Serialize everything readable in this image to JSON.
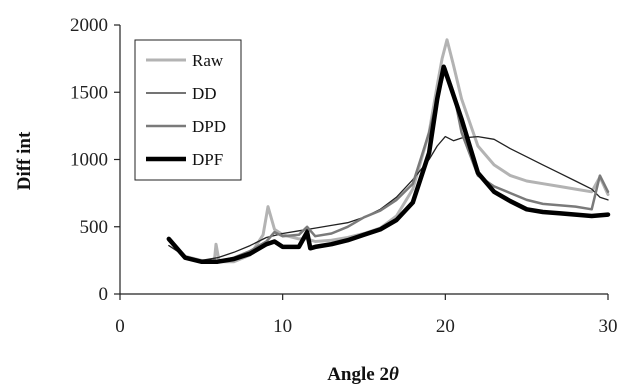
{
  "chart_data": {
    "type": "line",
    "xlabel": "Angle 2",
    "xlabel_symbol": "θ",
    "ylabel": "Diff int",
    "xlim": [
      0,
      30
    ],
    "ylim": [
      0,
      2000
    ],
    "x_ticks": [
      "0",
      "10",
      "20",
      "30"
    ],
    "y_ticks": [
      "0",
      "500",
      "1000",
      "1500",
      "2000"
    ],
    "grid": false,
    "legend_position": "top-left",
    "series": [
      {
        "name": "Raw",
        "color": "#b3b3b3",
        "width": 3,
        "points": [
          [
            3,
            400
          ],
          [
            4,
            280
          ],
          [
            5,
            250
          ],
          [
            5.8,
            240
          ],
          [
            5.9,
            370
          ],
          [
            6.1,
            240
          ],
          [
            7,
            240
          ],
          [
            8,
            290
          ],
          [
            8.8,
            440
          ],
          [
            9.1,
            650
          ],
          [
            9.5,
            480
          ],
          [
            10,
            440
          ],
          [
            11,
            410
          ],
          [
            11.5,
            410
          ],
          [
            12,
            390
          ],
          [
            13,
            400
          ],
          [
            14,
            420
          ],
          [
            15,
            450
          ],
          [
            16,
            490
          ],
          [
            17,
            580
          ],
          [
            18,
            780
          ],
          [
            19,
            1200
          ],
          [
            19.5,
            1550
          ],
          [
            19.8,
            1750
          ],
          [
            20.1,
            1890
          ],
          [
            20.5,
            1700
          ],
          [
            21,
            1450
          ],
          [
            22,
            1100
          ],
          [
            23,
            960
          ],
          [
            24,
            880
          ],
          [
            25,
            840
          ],
          [
            26,
            820
          ],
          [
            27,
            800
          ],
          [
            28,
            780
          ],
          [
            29,
            760
          ],
          [
            29.5,
            870
          ],
          [
            30,
            740
          ]
        ]
      },
      {
        "name": "DD",
        "color": "#222222",
        "width": 1.3,
        "points": [
          [
            3,
            360
          ],
          [
            4,
            280
          ],
          [
            5,
            250
          ],
          [
            6,
            270
          ],
          [
            7,
            310
          ],
          [
            8,
            360
          ],
          [
            9,
            420
          ],
          [
            10,
            450
          ],
          [
            11,
            470
          ],
          [
            12,
            490
          ],
          [
            13,
            510
          ],
          [
            14,
            530
          ],
          [
            15,
            570
          ],
          [
            16,
            630
          ],
          [
            17,
            720
          ],
          [
            18,
            850
          ],
          [
            19,
            1000
          ],
          [
            19.5,
            1100
          ],
          [
            20,
            1170
          ],
          [
            20.5,
            1140
          ],
          [
            21,
            1160
          ],
          [
            22,
            1170
          ],
          [
            23,
            1150
          ],
          [
            24,
            1080
          ],
          [
            25,
            1020
          ],
          [
            26,
            960
          ],
          [
            27,
            900
          ],
          [
            28,
            840
          ],
          [
            29,
            780
          ],
          [
            29.5,
            720
          ],
          [
            30,
            700
          ]
        ]
      },
      {
        "name": "DPD",
        "color": "#7a7a7a",
        "width": 2.5,
        "points": [
          [
            3,
            400
          ],
          [
            4,
            270
          ],
          [
            5,
            240
          ],
          [
            6,
            240
          ],
          [
            7,
            270
          ],
          [
            8,
            320
          ],
          [
            9,
            390
          ],
          [
            9.5,
            460
          ],
          [
            10,
            430
          ],
          [
            11,
            440
          ],
          [
            11.5,
            500
          ],
          [
            12,
            430
          ],
          [
            13,
            450
          ],
          [
            14,
            500
          ],
          [
            15,
            570
          ],
          [
            16,
            620
          ],
          [
            17,
            700
          ],
          [
            18,
            820
          ],
          [
            19,
            1200
          ],
          [
            19.5,
            1450
          ],
          [
            20,
            1680
          ],
          [
            20.5,
            1500
          ],
          [
            21,
            1200
          ],
          [
            22,
            880
          ],
          [
            23,
            800
          ],
          [
            24,
            750
          ],
          [
            25,
            700
          ],
          [
            26,
            670
          ],
          [
            27,
            660
          ],
          [
            28,
            650
          ],
          [
            29,
            630
          ],
          [
            29.5,
            880
          ],
          [
            30,
            760
          ]
        ]
      },
      {
        "name": "DPF",
        "color": "#000000",
        "width": 4.5,
        "points": [
          [
            3,
            410
          ],
          [
            4,
            270
          ],
          [
            5,
            240
          ],
          [
            6,
            240
          ],
          [
            7,
            260
          ],
          [
            8,
            300
          ],
          [
            9,
            370
          ],
          [
            9.5,
            390
          ],
          [
            10,
            350
          ],
          [
            11,
            350
          ],
          [
            11.5,
            460
          ],
          [
            11.7,
            340
          ],
          [
            12,
            350
          ],
          [
            13,
            370
          ],
          [
            14,
            400
          ],
          [
            15,
            440
          ],
          [
            16,
            480
          ],
          [
            17,
            550
          ],
          [
            18,
            680
          ],
          [
            19,
            1050
          ],
          [
            19.5,
            1450
          ],
          [
            19.9,
            1690
          ],
          [
            20.3,
            1550
          ],
          [
            21,
            1300
          ],
          [
            22,
            900
          ],
          [
            23,
            760
          ],
          [
            24,
            690
          ],
          [
            25,
            630
          ],
          [
            26,
            610
          ],
          [
            27,
            600
          ],
          [
            28,
            590
          ],
          [
            29,
            580
          ],
          [
            30,
            590
          ]
        ]
      }
    ]
  }
}
